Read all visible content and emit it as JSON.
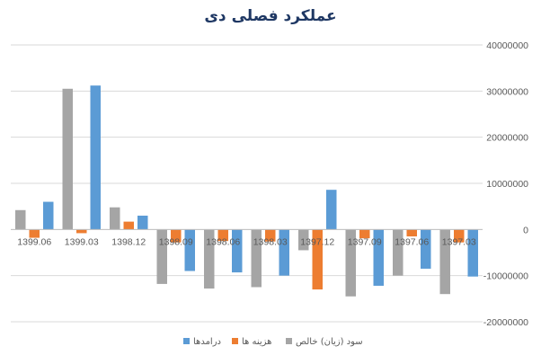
{
  "chart_data": {
    "type": "bar",
    "title": "عملکرد فصلی دی",
    "categories": [
      "1399.06",
      "1399.03",
      "1398.12",
      "1398.09",
      "1398.06",
      "1398.03",
      "1397.12",
      "1397.09",
      "1397.06",
      "1397.03"
    ],
    "series": [
      {
        "name": "سود (زیان) خالص",
        "color": "#a5a5a5",
        "values": [
          4200000,
          30500000,
          4800000,
          -11800000,
          -12800000,
          -12500000,
          -4500000,
          -14500000,
          -10000000,
          -14000000
        ]
      },
      {
        "name": "هزینه ها",
        "color": "#ed7d31",
        "values": [
          -1800000,
          -800000,
          1700000,
          -2800000,
          -2500000,
          -2600000,
          -13000000,
          -1900000,
          -1500000,
          -2800000
        ]
      },
      {
        "name": "درامدها",
        "color": "#5b9bd5",
        "values": [
          6000000,
          31200000,
          3000000,
          -9000000,
          -9300000,
          -10000000,
          8600000,
          -12200000,
          -8500000,
          -10200000
        ]
      }
    ],
    "y_ticks": [
      "40000000",
      "30000000",
      "20000000",
      "10000000",
      "0",
      "-10000000",
      "-20000000"
    ],
    "y_tick_values": [
      40000000,
      30000000,
      20000000,
      10000000,
      0,
      -10000000,
      -20000000
    ],
    "ylim": [
      -20000000,
      40000000
    ],
    "grid": true,
    "legend_position": "bottom"
  }
}
